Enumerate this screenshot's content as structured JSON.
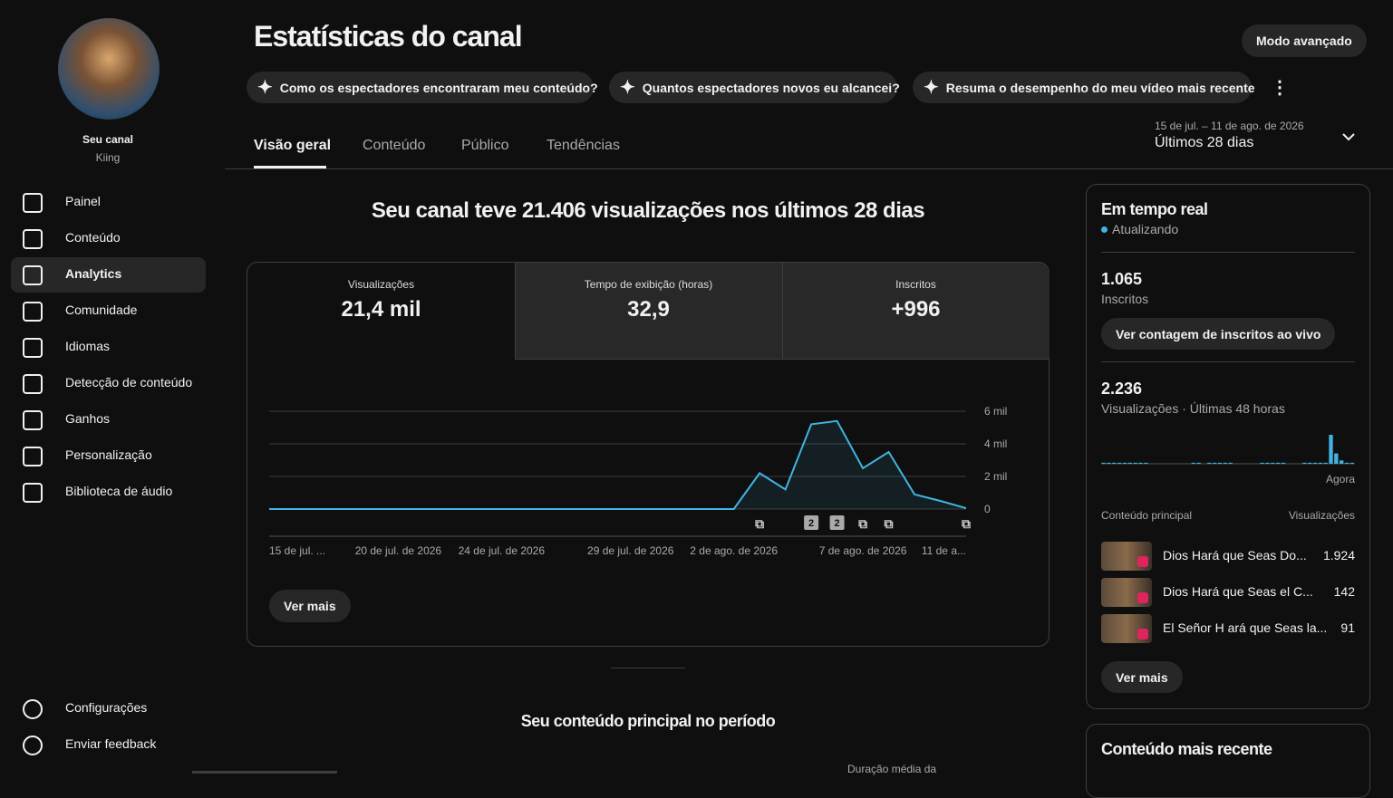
{
  "sidebar": {
    "channel_title": "Seu canal",
    "channel_name": "Kiing",
    "nav": [
      "Painel",
      "Conteúdo",
      "Analytics",
      "Comunidade",
      "Idiomas",
      "Detecção de conteúdo",
      "Ganhos",
      "Personalização",
      "Biblioteca de áudio"
    ],
    "footer_nav": [
      "Configurações",
      "Enviar feedback"
    ]
  },
  "header": {
    "title": "Estatísticas do canal",
    "advanced_button": "Modo avançado",
    "prompts": [
      "Como os espectadores encontraram meu conteúdo?",
      "Quantos espectadores novos eu alcancei?",
      "Resuma o desempenho do meu vídeo mais recente"
    ]
  },
  "tabs": [
    "Visão geral",
    "Conteúdo",
    "Público",
    "Tendências"
  ],
  "date_range": {
    "range": "15 de jul. – 11 de ago. de 2026",
    "period": "Últimos 28 dias"
  },
  "headline": "Seu canal teve 21.406 visualizações nos últimos 28 dias",
  "metrics": [
    {
      "label": "Visualizações",
      "value": "21,4 mil"
    },
    {
      "label": "Tempo de exibição (horas)",
      "value": "32,9"
    },
    {
      "label": "Inscritos",
      "value": "+996"
    }
  ],
  "chart_data": {
    "type": "line",
    "color": "#41b4e3",
    "categories": [
      "15 de jul. ...",
      null,
      null,
      null,
      null,
      "20 de jul. de 2026",
      null,
      null,
      null,
      "24 de jul. de 2026",
      null,
      null,
      null,
      null,
      "29 de jul. de 2026",
      null,
      null,
      null,
      "2 de ago. de 2026",
      null,
      null,
      null,
      null,
      "7 de ago. de 2026",
      null,
      null,
      null,
      "11 de a..."
    ],
    "values": [
      0,
      0,
      0,
      0,
      0,
      0,
      0,
      0,
      0,
      0,
      0,
      0,
      0,
      0,
      0,
      0,
      0,
      0,
      0,
      2200,
      1200,
      5200,
      5400,
      2500,
      3500,
      900,
      500,
      50
    ],
    "ylim": [
      0,
      6000
    ],
    "yticks": [
      0,
      {
        "value": 2000,
        "label": "2 mil"
      },
      {
        "value": 4000,
        "label": "4 mil"
      },
      {
        "value": 6000,
        "label": "6 mil"
      }
    ],
    "grid": true,
    "marker_labels": [
      "2",
      "2"
    ]
  },
  "chart_button": "Ver mais",
  "realtime": {
    "title": "Em tempo real",
    "status": "Atualizando",
    "subscribers": "1.065",
    "subscribers_label": "Inscritos",
    "live_button": "Ver contagem de inscritos ao vivo",
    "views": "2.236",
    "views_label": "Visualizações · Últimas 48 horas",
    "now_label": "Agora",
    "chart": {
      "type": "bar",
      "color": "#41b4e3",
      "values": [
        25,
        25,
        25,
        25,
        25,
        25,
        25,
        25,
        25,
        0,
        0,
        0,
        0,
        0,
        0,
        0,
        0,
        25,
        25,
        0,
        25,
        25,
        25,
        25,
        25,
        0,
        0,
        0,
        0,
        0,
        25,
        25,
        25,
        25,
        25,
        0,
        0,
        0,
        25,
        25,
        25,
        25,
        25,
        700,
        250,
        80,
        25,
        25
      ]
    },
    "top_header": "Conteúdo principal",
    "top_views_header": "Visualizações",
    "top": [
      {
        "title": "Dios Hará que Seas Do...",
        "views": "1.924"
      },
      {
        "title": "Dios Hará que Seas el C...",
        "views": "142"
      },
      {
        "title": "El Señor H ará que Seas la...",
        "views": "91"
      }
    ],
    "more_button": "Ver mais"
  },
  "latest_title": "Conteúdo mais recente",
  "top_content_title": "Seu conteúdo principal no período",
  "top_content_col": "Duração média da"
}
